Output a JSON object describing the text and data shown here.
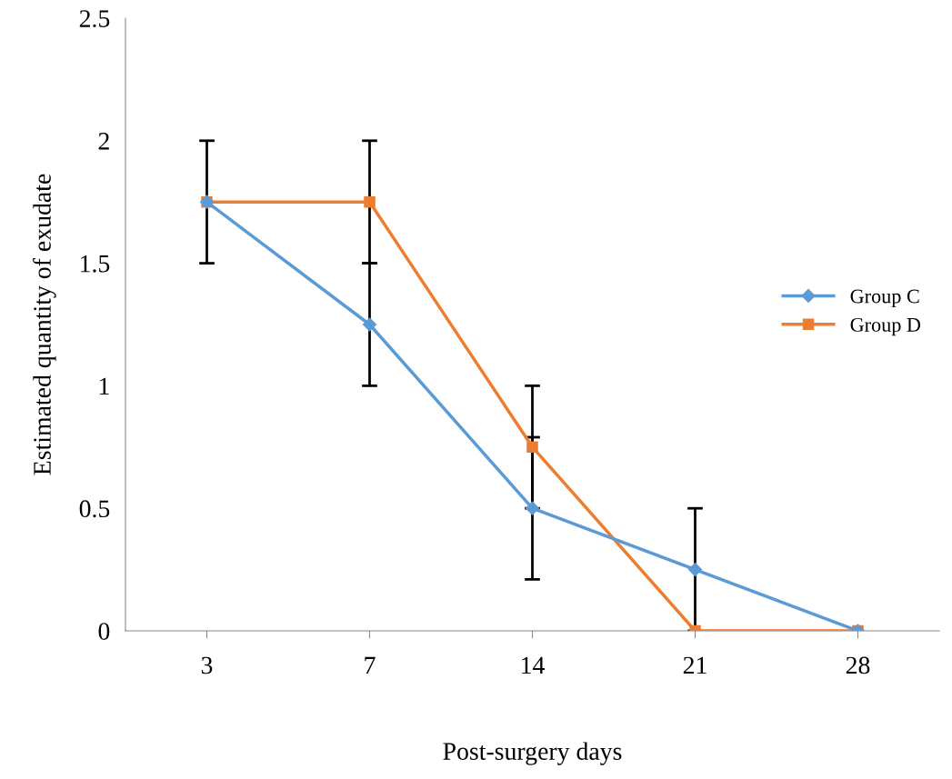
{
  "chart_data": {
    "type": "line",
    "xlabel": "Post-surgery days",
    "ylabel": "Estimated quantity of exudate",
    "categories": [
      "3",
      "7",
      "14",
      "21",
      "28"
    ],
    "series": [
      {
        "name": "Group C",
        "color": "#5b9bd5",
        "marker": "diamond",
        "values": [
          1.75,
          1.25,
          0.5,
          0.25,
          0
        ],
        "errors": [
          null,
          0.25,
          0.29,
          0.25,
          null
        ]
      },
      {
        "name": "Group D",
        "color": "#ed7d31",
        "marker": "square",
        "values": [
          1.75,
          1.75,
          0.75,
          0,
          0
        ],
        "errors": [
          0.25,
          0.25,
          0.25,
          null,
          null
        ]
      }
    ],
    "ylim": [
      0,
      2.5
    ],
    "yticks": [
      0,
      0.5,
      1,
      1.5,
      2,
      2.5
    ],
    "grid": false,
    "legend": "right",
    "line_style": "solid"
  }
}
